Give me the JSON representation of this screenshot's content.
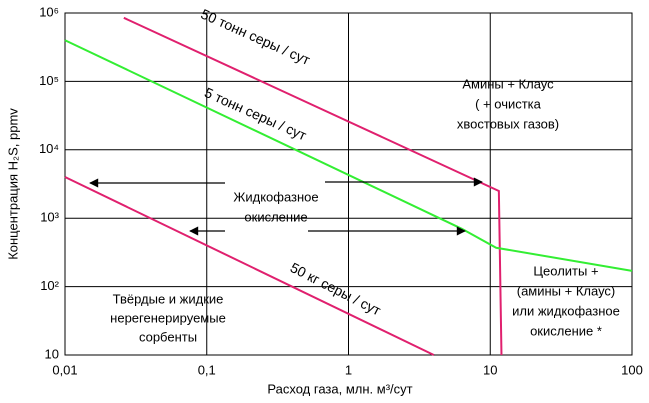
{
  "chart_data": {
    "type": "line",
    "xscale": "log",
    "yscale": "log",
    "xlabel": "Расход газа, млн. м³/сут",
    "ylabel": "Концентрация H₂S, ppmv",
    "xlim": [
      0.01,
      100
    ],
    "ylim": [
      10,
      1000000
    ],
    "xticks": [
      {
        "value": 0.01,
        "label": "0,01"
      },
      {
        "value": 0.1,
        "label": "0,1"
      },
      1,
      10,
      100
    ],
    "yticks": [
      10,
      {
        "value": 100,
        "label": "10²"
      },
      {
        "value": 1000,
        "label": "10³"
      },
      {
        "value": 10000,
        "label": "10⁴"
      },
      {
        "value": 100000,
        "label": "10⁵"
      },
      {
        "value": 1000000,
        "label": "10⁶"
      }
    ],
    "grid": true,
    "series": [
      {
        "name": "50 тонн серы / сут",
        "color": "#e0206e",
        "x": [
          0.026,
          11.5,
          12
        ],
        "values": [
          850000,
          2500,
          10
        ]
      },
      {
        "name": "5 тонн серы / сут",
        "color": "#33ee33",
        "x": [
          0.01,
          6.3,
          11,
          100
        ],
        "values": [
          400000,
          700,
          370,
          170
        ]
      },
      {
        "name": "50 кг серы / сут",
        "color": "#e0206e",
        "x": [
          0.01,
          4
        ],
        "values": [
          4000,
          10
        ]
      }
    ],
    "annotations": [
      [
        "Амины + Клаус",
        "( + очистка",
        "хвостовых газов)"
      ],
      [
        "Жидкофазное",
        "окисление"
      ],
      [
        "Цеолиты +",
        "(амины + Клаус)",
        "или жидкофазное",
        "окисление *"
      ],
      [
        "Твёрдые и жидкие",
        "нерегенерируемые",
        "сорбенты"
      ]
    ]
  }
}
